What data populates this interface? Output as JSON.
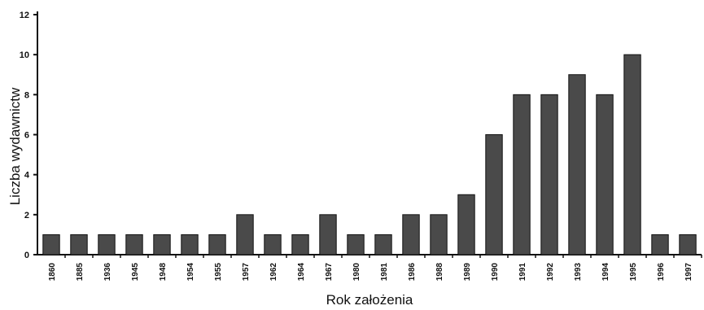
{
  "chart_data": {
    "type": "bar",
    "title": "",
    "xlabel": "Rok założenia",
    "ylabel": "Liczba wydawnictw",
    "ylim": [
      0,
      12
    ],
    "yticks": [
      0,
      2,
      4,
      6,
      8,
      10,
      12
    ],
    "grid": false,
    "legend": "none",
    "categories": [
      "1860",
      "1885",
      "1936",
      "1945",
      "1948",
      "1954",
      "1955",
      "1957",
      "1962",
      "1964",
      "1967",
      "1980",
      "1981",
      "1986",
      "1988",
      "1989",
      "1990",
      "1991",
      "1992",
      "1993",
      "1994",
      "1995",
      "1996",
      "1997"
    ],
    "values": [
      1,
      1,
      1,
      1,
      1,
      1,
      1,
      2,
      1,
      1,
      2,
      1,
      1,
      2,
      2,
      3,
      6,
      8,
      8,
      9,
      8,
      10,
      1,
      1
    ],
    "bar_color": "#4a4a4a"
  }
}
